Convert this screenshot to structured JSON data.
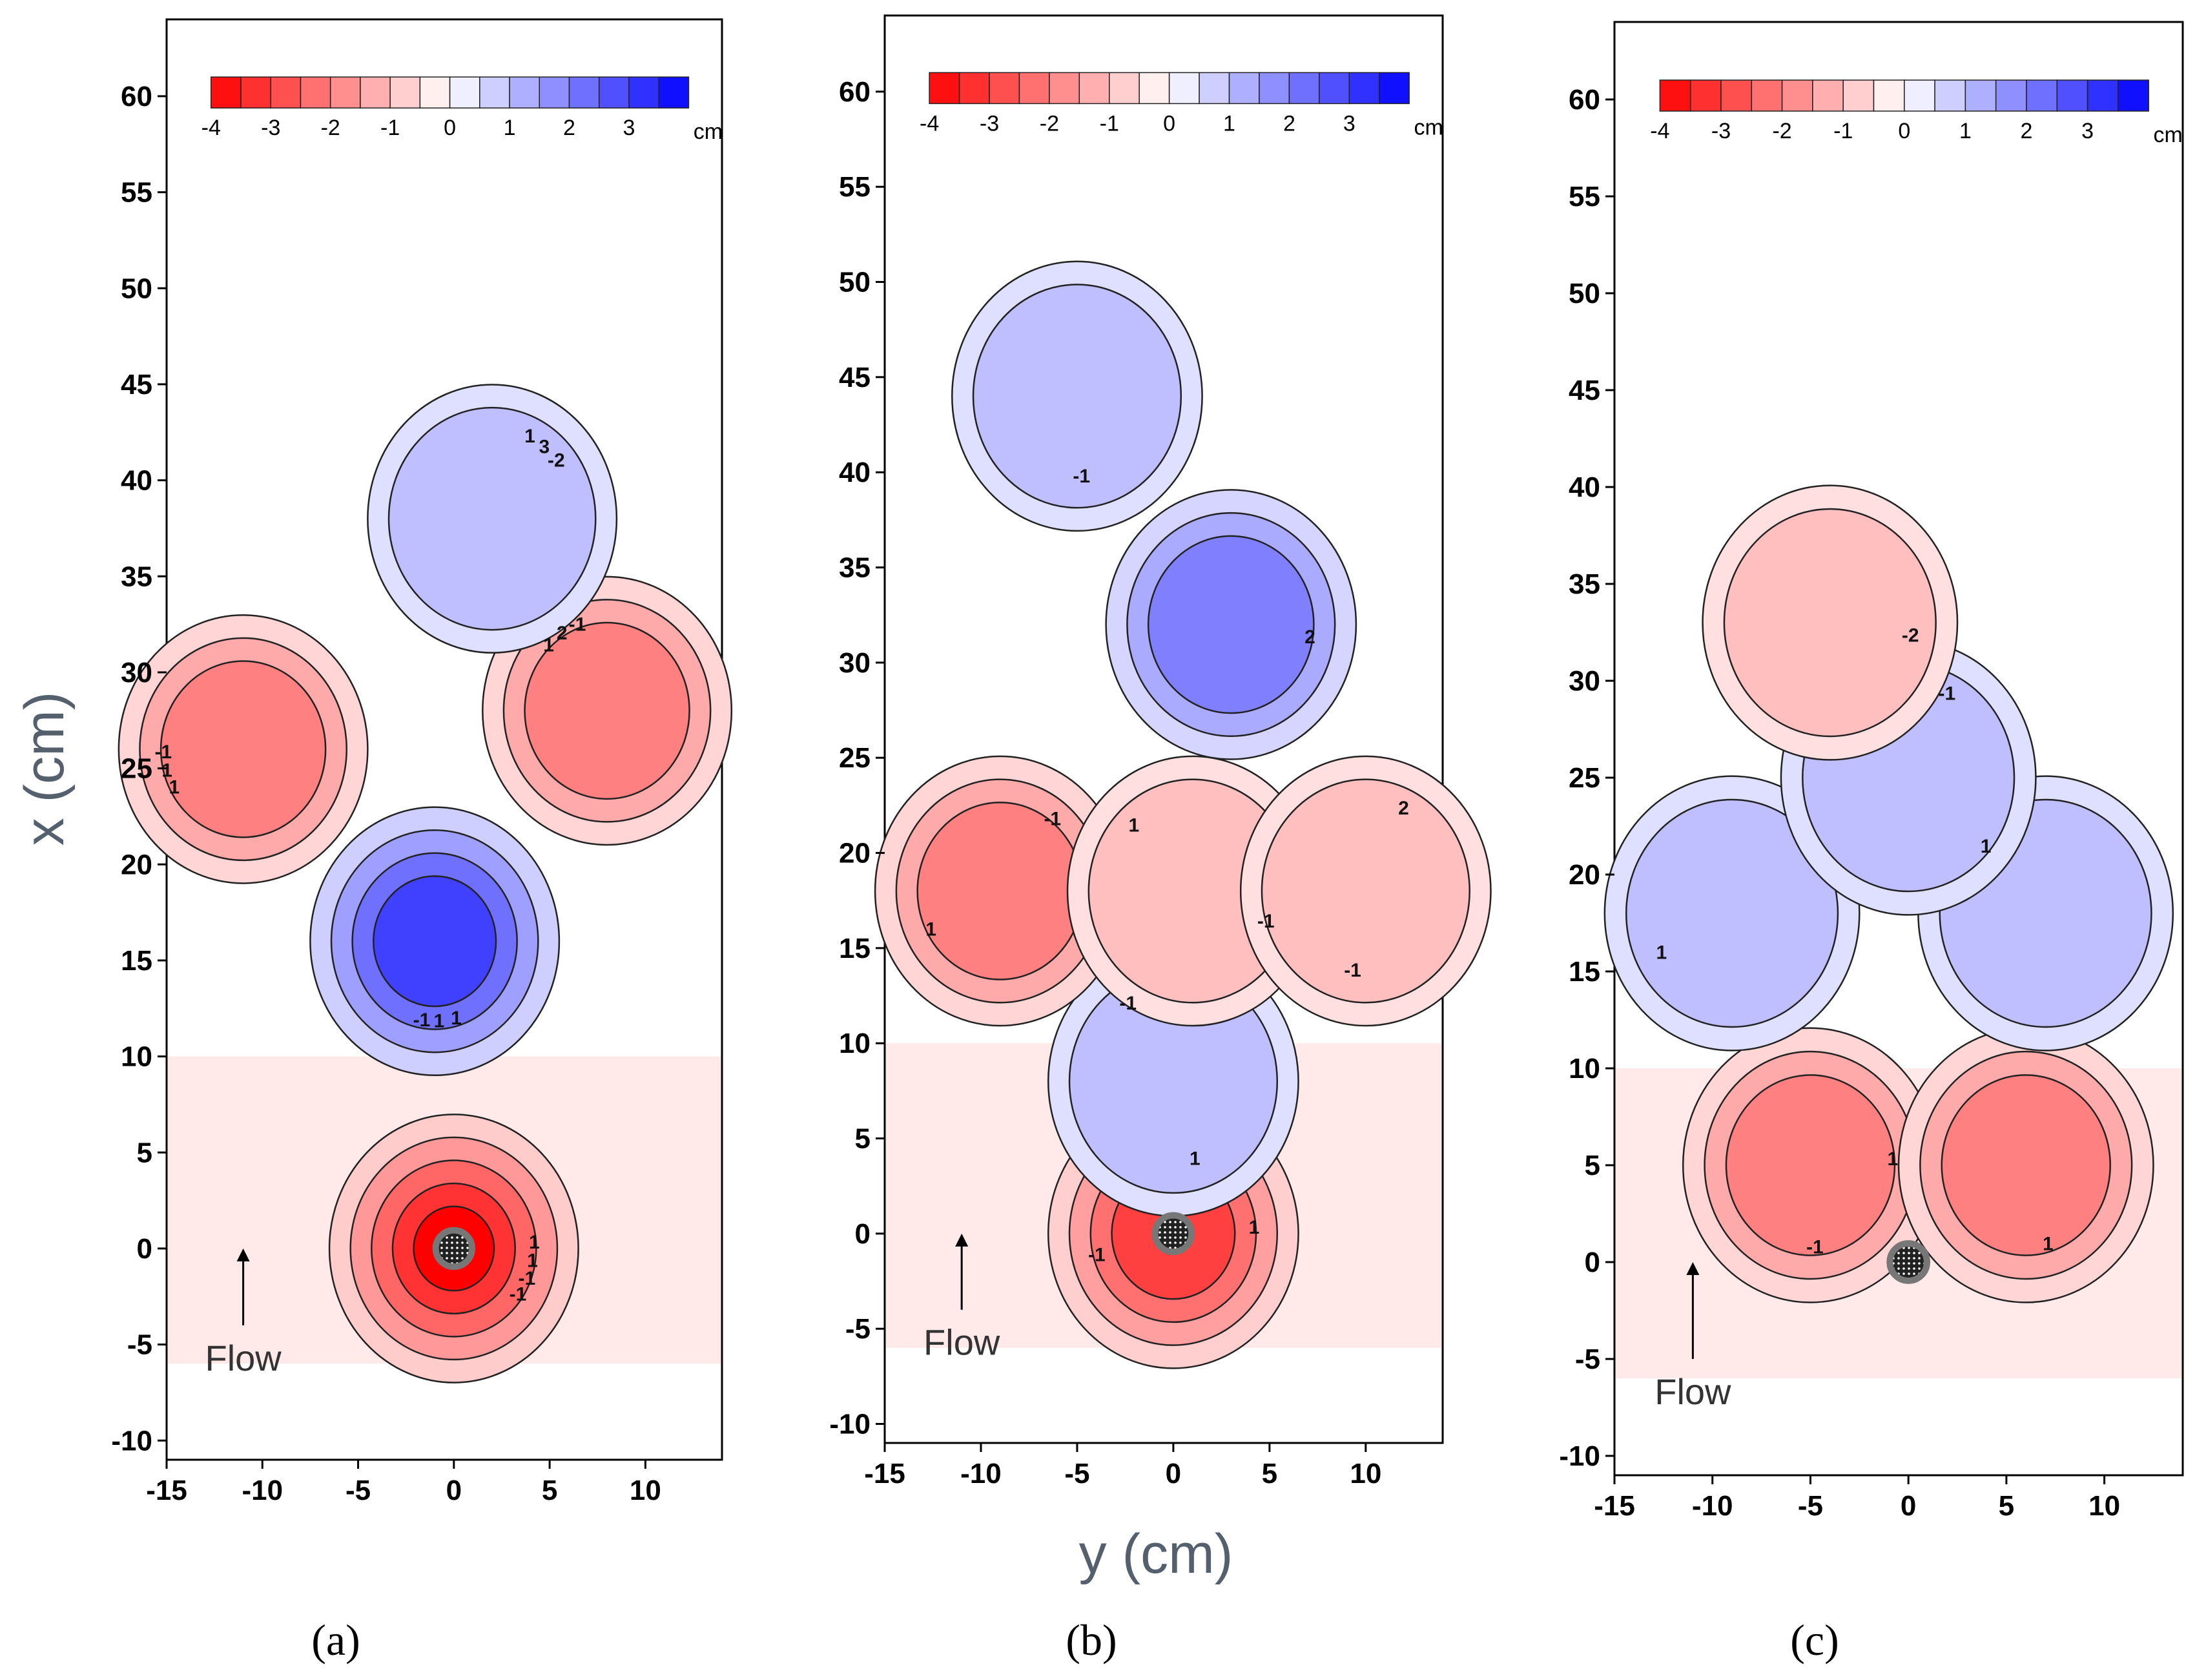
{
  "figure": {
    "y_axis_label": "x (cm)",
    "x_axis_label": "y (cm)",
    "flow_label": "Flow"
  },
  "chart_data": [
    {
      "type": "heatmap",
      "panel_label": "(a)",
      "xlabel": "y (cm)",
      "ylabel": "x (cm)",
      "xlim": [
        -15,
        14
      ],
      "ylim": [
        -11,
        64
      ],
      "xticks": [
        "-15",
        "-10",
        "-5",
        "0",
        "5",
        "10"
      ],
      "yticks": [
        "60",
        "55",
        "50",
        "45",
        "40",
        "35",
        "30",
        "25",
        "20",
        "15",
        "10",
        "5",
        "0",
        "-5",
        "-10"
      ],
      "colorbar": {
        "ticks": [
          "-4",
          "-3",
          "-2",
          "-1",
          "0",
          "1",
          "2",
          "3"
        ],
        "unit": "cm",
        "range": [
          -4,
          4
        ]
      },
      "flow_arrow": {
        "y": -11,
        "x_from": -4,
        "x_to": 0,
        "label": "Flow"
      },
      "pier": {
        "y": 0,
        "x": 0
      },
      "contour_labels": [
        "1",
        "1",
        "1",
        "1",
        "1",
        "1",
        "1",
        "1",
        "2",
        "3",
        "-1",
        "-1",
        "-1",
        "-1",
        "-2",
        "-1"
      ],
      "regions": [
        {
          "sign": "scour",
          "center": [
            0,
            0
          ],
          "value": -4
        },
        {
          "sign": "deposition",
          "center": [
            -1,
            16
          ],
          "value": 3
        },
        {
          "sign": "scour",
          "center": [
            -11,
            26
          ],
          "value": -2
        },
        {
          "sign": "scour",
          "center": [
            8,
            28
          ],
          "value": -2
        },
        {
          "sign": "deposition",
          "center": [
            2,
            38
          ],
          "value": 1
        }
      ]
    },
    {
      "type": "heatmap",
      "panel_label": "(b)",
      "xlabel": "y (cm)",
      "ylabel": "x (cm)",
      "xlim": [
        -15,
        14
      ],
      "ylim": [
        -11,
        64
      ],
      "xticks": [
        "-15",
        "-10",
        "-5",
        "0",
        "5",
        "10"
      ],
      "yticks": [
        "60",
        "55",
        "50",
        "45",
        "40",
        "35",
        "30",
        "25",
        "20",
        "15",
        "10",
        "5",
        "0",
        "-5",
        "-10"
      ],
      "colorbar": {
        "ticks": [
          "-4",
          "-3",
          "-2",
          "-1",
          "0",
          "1",
          "2",
          "3"
        ],
        "unit": "cm",
        "range": [
          -4,
          4
        ]
      },
      "flow_arrow": {
        "y": -11,
        "x_from": -4,
        "x_to": 0,
        "label": "Flow"
      },
      "pier": {
        "y": 0,
        "x": 0
      },
      "contour_labels": [
        "1",
        "1",
        "1",
        "1",
        "2",
        "2",
        "-1",
        "-1",
        "-1",
        "-1",
        "-1",
        "-1"
      ],
      "regions": [
        {
          "sign": "scour",
          "center": [
            0,
            0
          ],
          "value": -3
        },
        {
          "sign": "deposition",
          "center": [
            0,
            8
          ],
          "value": 1
        },
        {
          "sign": "scour",
          "center": [
            -9,
            18
          ],
          "value": -2
        },
        {
          "sign": "scour",
          "center": [
            1,
            18
          ],
          "value": -1
        },
        {
          "sign": "scour",
          "center": [
            10,
            18
          ],
          "value": -1
        },
        {
          "sign": "deposition",
          "center": [
            3,
            32
          ],
          "value": 2
        },
        {
          "sign": "deposition",
          "center": [
            -5,
            44
          ],
          "value": 1
        }
      ]
    },
    {
      "type": "heatmap",
      "panel_label": "(c)",
      "xlabel": "y (cm)",
      "ylabel": "x (cm)",
      "xlim": [
        -15,
        14
      ],
      "ylim": [
        -11,
        64
      ],
      "xticks": [
        "-15",
        "-10",
        "-5",
        "0",
        "5",
        "10"
      ],
      "yticks": [
        "60",
        "55",
        "50",
        "45",
        "40",
        "35",
        "30",
        "25",
        "20",
        "15",
        "10",
        "5",
        "0",
        "-5",
        "-10"
      ],
      "colorbar": {
        "ticks": [
          "-4",
          "-3",
          "-2",
          "-1",
          "0",
          "1",
          "2",
          "3"
        ],
        "unit": "cm",
        "range": [
          -4,
          4
        ]
      },
      "flow_arrow": {
        "y": -11,
        "x_from": -5,
        "x_to": 0,
        "label": "Flow"
      },
      "pier": {
        "y": 0,
        "x": 0
      },
      "contour_labels": [
        "1",
        "1",
        "1",
        "1",
        "-1",
        "-2",
        "-1"
      ],
      "regions": [
        {
          "sign": "scour",
          "center": [
            -5,
            5
          ],
          "value": -2
        },
        {
          "sign": "scour",
          "center": [
            6,
            5
          ],
          "value": -2
        },
        {
          "sign": "deposition",
          "center": [
            -9,
            18
          ],
          "value": 1
        },
        {
          "sign": "deposition",
          "center": [
            7,
            18
          ],
          "value": 1
        },
        {
          "sign": "deposition",
          "center": [
            0,
            25
          ],
          "value": 1
        },
        {
          "sign": "scour",
          "center": [
            -4,
            33
          ],
          "value": -1
        }
      ]
    }
  ]
}
